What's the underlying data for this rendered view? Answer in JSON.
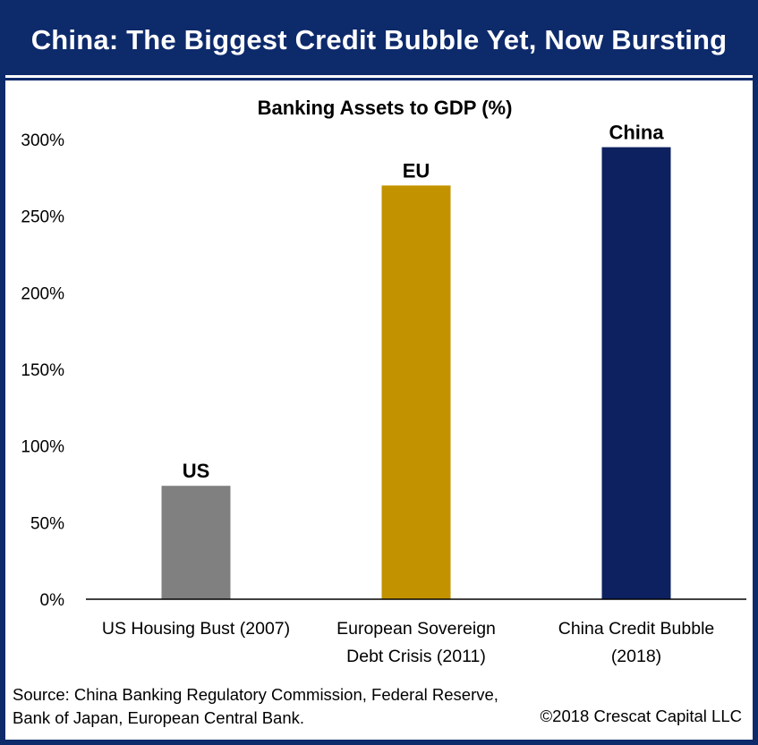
{
  "header": {
    "title": "China: The Biggest Credit Bubble Yet, Now Bursting"
  },
  "chart_data": {
    "type": "bar",
    "title": "Banking Assets to GDP (%)",
    "xlabel": "",
    "ylabel": "",
    "ylim": [
      0,
      300
    ],
    "yticks": [
      "0%",
      "50%",
      "100%",
      "150%",
      "200%",
      "250%",
      "300%"
    ],
    "categories": [
      [
        "US Housing Bust (2007)"
      ],
      [
        "European Sovereign",
        "Debt Crisis (2011)"
      ],
      [
        "China Credit Bubble",
        "(2018)"
      ]
    ],
    "bar_labels": [
      "US",
      "EU",
      "China"
    ],
    "values": [
      74,
      270,
      295
    ],
    "colors": [
      "#808080",
      "#c39200",
      "#0d2160"
    ],
    "grid": false,
    "legend": "none"
  },
  "footer": {
    "source": "Source: China Banking Regulatory Commission, Federal Reserve, Bank of Japan, European Central Bank.",
    "copyright": "©2018 Crescat Capital LLC"
  }
}
